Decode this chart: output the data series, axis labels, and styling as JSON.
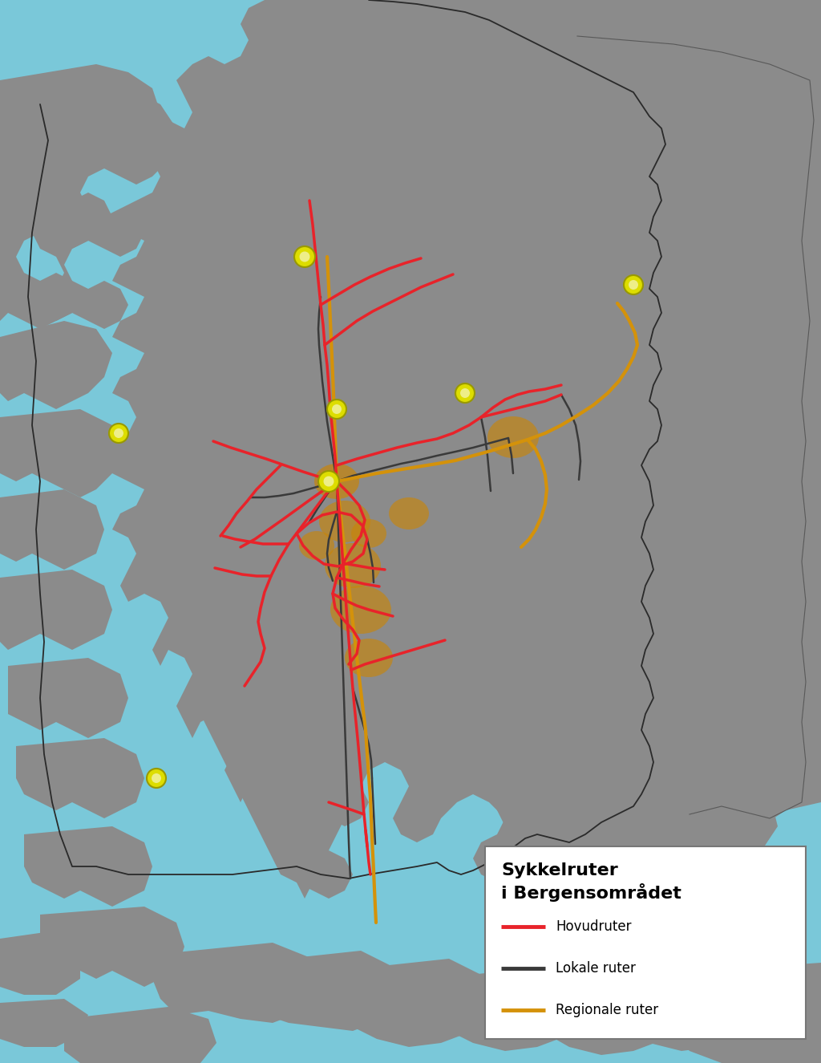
{
  "background_color": "#7AC8D9",
  "water_color": "#7AC8D9",
  "land_color": "#8B8B8B",
  "route_colors": {
    "hovud": "#E8232A",
    "lokal": "#3A3A3A",
    "regional": "#D4920A"
  },
  "legend": {
    "title_line1": "Sykkelruter",
    "title_line2": "i Bergensområdet",
    "items": [
      {
        "label": "Hovudruter",
        "color": "#E8232A"
      },
      {
        "label": "Lokale ruter",
        "color": "#3A3A3A"
      },
      {
        "label": "Regionale ruter",
        "color": "#D4920A"
      }
    ]
  },
  "yellow_marker_color": "#DDDD00",
  "yellow_ring_color": "#999900",
  "orange_blob_color": "#C8850A",
  "border_color": "#2A2A2A",
  "figsize": [
    10.24,
    13.25
  ],
  "dpi": 100
}
